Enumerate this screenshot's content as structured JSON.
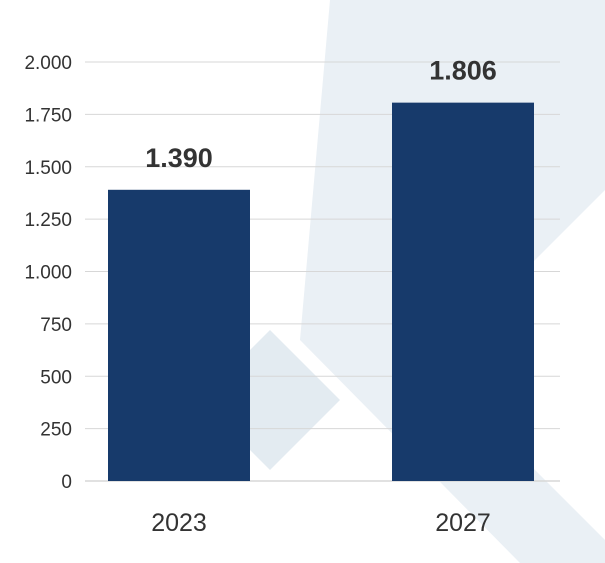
{
  "colors": {
    "bar": "#173a6b",
    "grid": "#d7d7d7",
    "background_motif": "#e8eff4"
  },
  "chart_data": {
    "type": "bar",
    "categories": [
      "2023",
      "2027"
    ],
    "values": [
      1390,
      1806
    ],
    "value_labels": [
      "1.390",
      "1.806"
    ],
    "title": "",
    "xlabel": "",
    "ylabel": "",
    "ylim": [
      0,
      2000
    ],
    "y_ticks": [
      0,
      250,
      500,
      750,
      1000,
      1250,
      1500,
      1750,
      2000
    ],
    "y_tick_labels": [
      "0",
      "250",
      "500",
      "750",
      "1.000",
      "1.250",
      "1.500",
      "1.750",
      "2.000"
    ],
    "grid": true,
    "legend": "none"
  }
}
